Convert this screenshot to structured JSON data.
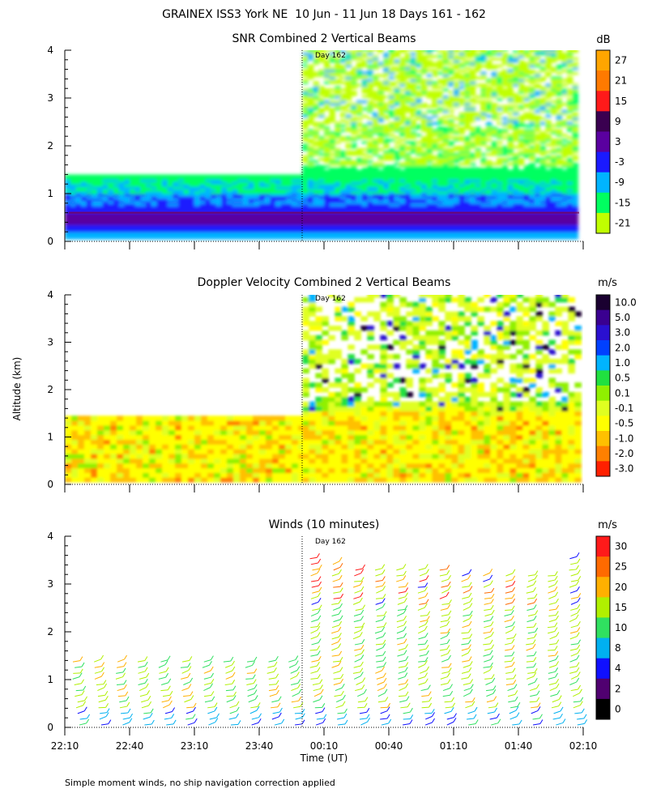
{
  "figure_title": "GRAINEX ISS3 York NE  10 Jun - 11 Jun 18 Days 161 - 162",
  "y_axis_label": "Altitude (km)",
  "x_axis_label": "Time (UT)",
  "footnote": "Simple moment winds, no ship navigation correction applied",
  "day_marker_label": "Day 162",
  "colors": {
    "white": "#ffffff",
    "axis": "#000000"
  },
  "chart_data": [
    {
      "type": "heatmap",
      "title": "SNR Combined 2 Vertical Beams",
      "units": "dB",
      "x_tick_labels": [
        "22:10",
        "22:40",
        "23:10",
        "23:40",
        "00:10",
        "00:40",
        "01:10",
        "01:40",
        "02:10"
      ],
      "xlim_minutes": [
        0,
        240
      ],
      "ylabel": "Altitude (km)",
      "ylim": [
        0,
        4
      ],
      "y_ticks": [
        0,
        1,
        2,
        3,
        4
      ],
      "day_boundary_minutes": 110,
      "colorbar_labels": [
        "27",
        "21",
        "15",
        "9",
        "3",
        "-3",
        "-9",
        "-15",
        "-21"
      ],
      "colorbar_colors": [
        "#ffa500",
        "#ff7a00",
        "#ff1a1a",
        "#3a0050",
        "#5a00a0",
        "#1a1aff",
        "#00b4ff",
        "#00ff60",
        "#c0ff00"
      ],
      "coverage": [
        {
          "t_start": 0,
          "t_end": 110,
          "alt_top_km": 1.4
        },
        {
          "t_start": 110,
          "t_end": 237,
          "alt_top_km": 4.0
        }
      ]
    },
    {
      "type": "heatmap",
      "title": "Doppler Velocity Combined 2 Vertical Beams",
      "units": "m/s",
      "x_tick_labels": [
        "22:10",
        "22:40",
        "23:10",
        "23:40",
        "00:10",
        "00:40",
        "01:10",
        "01:40",
        "02:10"
      ],
      "xlim_minutes": [
        0,
        240
      ],
      "ylabel": "Altitude (km)",
      "ylim": [
        0,
        4
      ],
      "y_ticks": [
        0,
        1,
        2,
        3,
        4
      ],
      "day_boundary_minutes": 110,
      "colorbar_labels": [
        "10.0",
        "5.0",
        "3.0",
        "2.0",
        "1.0",
        "0.5",
        "0.1",
        "-0.1",
        "-0.5",
        "-1.0",
        "-2.0",
        "-3.0"
      ],
      "colorbar_colors": [
        "#1a0030",
        "#3a0090",
        "#2a10d0",
        "#0040ff",
        "#00b4ff",
        "#20e040",
        "#90f000",
        "#e0ff20",
        "#ffff00",
        "#ffc000",
        "#ff8000",
        "#ff2000"
      ],
      "coverage": [
        {
          "t_start": 0,
          "t_end": 110,
          "alt_top_km": 1.4
        },
        {
          "t_start": 110,
          "t_end": 237,
          "alt_top_km": 4.0
        }
      ]
    },
    {
      "type": "scatter",
      "subtype": "wind-barbs",
      "title": "Winds (10 minutes)",
      "units": "m/s",
      "x_tick_labels": [
        "22:10",
        "22:40",
        "23:10",
        "23:40",
        "00:10",
        "00:40",
        "01:10",
        "01:40",
        "02:10"
      ],
      "xlim_minutes": [
        0,
        240
      ],
      "ylabel": "Altitude (km)",
      "ylim": [
        0,
        4
      ],
      "y_ticks": [
        0,
        1,
        2,
        3,
        4
      ],
      "day_boundary_minutes": 110,
      "colorbar_labels": [
        "30",
        "25",
        "20",
        "15",
        "10",
        "8",
        "4",
        "2",
        "0"
      ],
      "colorbar_colors": [
        "#ff1a1a",
        "#ff6a00",
        "#ffb000",
        "#b0f000",
        "#30e060",
        "#00b0f0",
        "#1010ff",
        "#500070",
        "#000000"
      ],
      "profile_interval_minutes": 10,
      "profiles": [
        {
          "t": 4,
          "top_km": 1.4
        },
        {
          "t": 14,
          "top_km": 1.4
        },
        {
          "t": 24,
          "top_km": 1.4
        },
        {
          "t": 34,
          "top_km": 1.4
        },
        {
          "t": 44,
          "top_km": 1.4
        },
        {
          "t": 54,
          "top_km": 1.4
        },
        {
          "t": 64,
          "top_km": 1.4
        },
        {
          "t": 74,
          "top_km": 1.4
        },
        {
          "t": 84,
          "top_km": 1.4
        },
        {
          "t": 94,
          "top_km": 1.4
        },
        {
          "t": 104,
          "top_km": 1.4
        },
        {
          "t": 114,
          "top_km": 3.6
        },
        {
          "t": 124,
          "top_km": 3.5
        },
        {
          "t": 134,
          "top_km": 3.4
        },
        {
          "t": 144,
          "top_km": 3.4
        },
        {
          "t": 154,
          "top_km": 3.3
        },
        {
          "t": 164,
          "top_km": 3.3
        },
        {
          "t": 174,
          "top_km": 3.3
        },
        {
          "t": 184,
          "top_km": 3.2
        },
        {
          "t": 194,
          "top_km": 3.2
        },
        {
          "t": 204,
          "top_km": 3.2
        },
        {
          "t": 214,
          "top_km": 3.2
        },
        {
          "t": 224,
          "top_km": 3.2
        },
        {
          "t": 234,
          "top_km": 3.6
        }
      ]
    }
  ]
}
